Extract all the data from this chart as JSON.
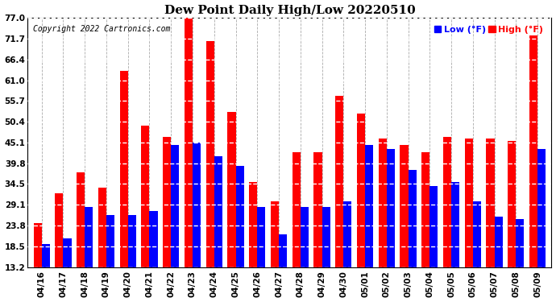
{
  "title": "Dew Point Daily High/Low 20220510",
  "copyright": "Copyright 2022 Cartronics.com",
  "low_color": "#0000ff",
  "high_color": "#ff0000",
  "background_color": "white",
  "ylim": [
    13.2,
    77.0
  ],
  "ybase": 13.2,
  "yticks": [
    13.2,
    18.5,
    23.8,
    29.1,
    34.5,
    39.8,
    45.1,
    50.4,
    55.7,
    61.0,
    66.4,
    71.7,
    77.0
  ],
  "dates": [
    "04/16",
    "04/17",
    "04/18",
    "04/19",
    "04/20",
    "04/21",
    "04/22",
    "04/23",
    "04/24",
    "04/25",
    "04/26",
    "04/27",
    "04/28",
    "04/29",
    "04/30",
    "05/01",
    "05/02",
    "05/03",
    "05/04",
    "05/05",
    "05/06",
    "05/07",
    "05/08",
    "05/09"
  ],
  "high_values": [
    24.5,
    32.0,
    37.5,
    33.5,
    63.5,
    49.5,
    46.5,
    78.0,
    71.0,
    53.0,
    35.0,
    30.0,
    42.5,
    42.5,
    57.0,
    52.5,
    46.0,
    44.5,
    42.5,
    46.5,
    46.0,
    46.0,
    45.5,
    72.5
  ],
  "low_values": [
    19.0,
    20.5,
    28.5,
    26.5,
    26.5,
    27.5,
    44.5,
    45.0,
    41.5,
    39.0,
    28.5,
    21.5,
    28.5,
    28.5,
    30.0,
    44.5,
    43.5,
    38.0,
    34.0,
    35.0,
    30.0,
    26.0,
    25.5,
    43.5
  ],
  "bar_width": 0.38,
  "figsize": [
    6.9,
    3.75
  ],
  "dpi": 100
}
